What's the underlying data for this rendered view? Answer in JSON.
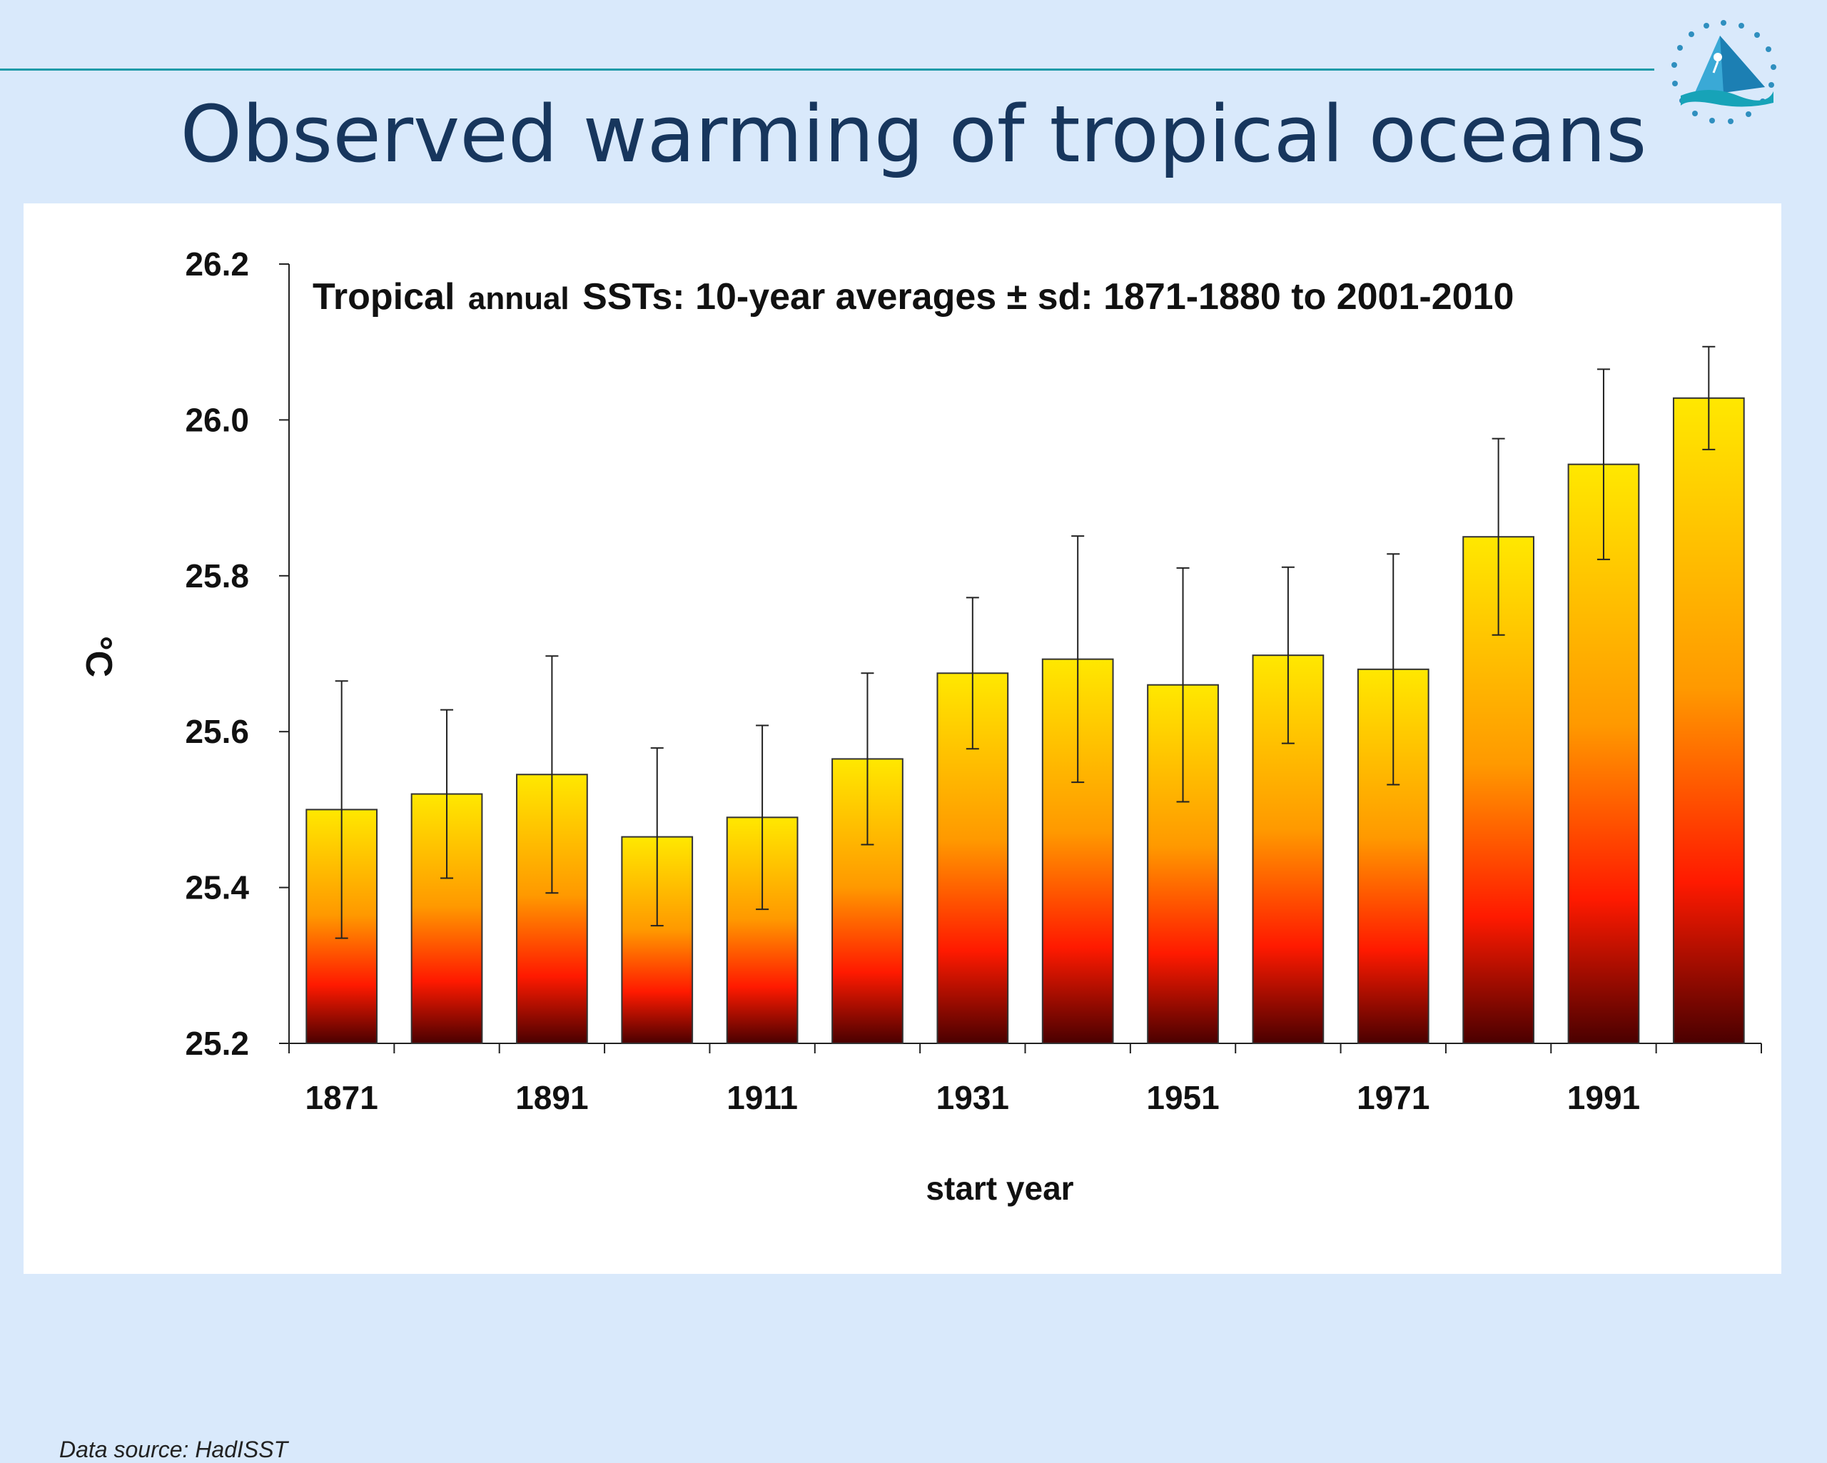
{
  "slide": {
    "title": "Observed warming of tropical oceans",
    "source_note": "Data source: HadISST"
  },
  "colors": {
    "background": "#d9e9fb",
    "rule": "#1f9aa8",
    "title": "#17365d",
    "bar_top": "#ffe800",
    "bar_mid1": "#ff9900",
    "bar_mid2": "#ff1a00",
    "bar_bottom": "#4a0000"
  },
  "chart_data": {
    "type": "bar",
    "title_parts": [
      "Tropical",
      "annual",
      "SSTs: 10-year averages ± sd: 1871-1880 to 2001-2010"
    ],
    "xlabel": "start year",
    "ylabel": "°C",
    "ylim": [
      25.2,
      26.2
    ],
    "yticks": [
      "25.2",
      "25.4",
      "25.6",
      "25.8",
      "26.0",
      "26.2"
    ],
    "categories": [
      1871,
      1881,
      1891,
      1901,
      1911,
      1921,
      1931,
      1941,
      1951,
      1961,
      1971,
      1981,
      1991,
      2001
    ],
    "xtick_labels": [
      "1871",
      "",
      "1891",
      "",
      "1911",
      "",
      "1931",
      "",
      "1951",
      "",
      "1971",
      "",
      "1991",
      ""
    ],
    "values": [
      25.5,
      25.52,
      25.545,
      25.465,
      25.49,
      25.565,
      25.675,
      25.693,
      25.66,
      25.698,
      25.68,
      25.85,
      25.943,
      26.028
    ],
    "sd": [
      0.165,
      0.108,
      0.152,
      0.114,
      0.118,
      0.11,
      0.097,
      0.158,
      0.15,
      0.113,
      0.148,
      0.126,
      0.122,
      0.066
    ],
    "grid": false,
    "legend": "none"
  }
}
